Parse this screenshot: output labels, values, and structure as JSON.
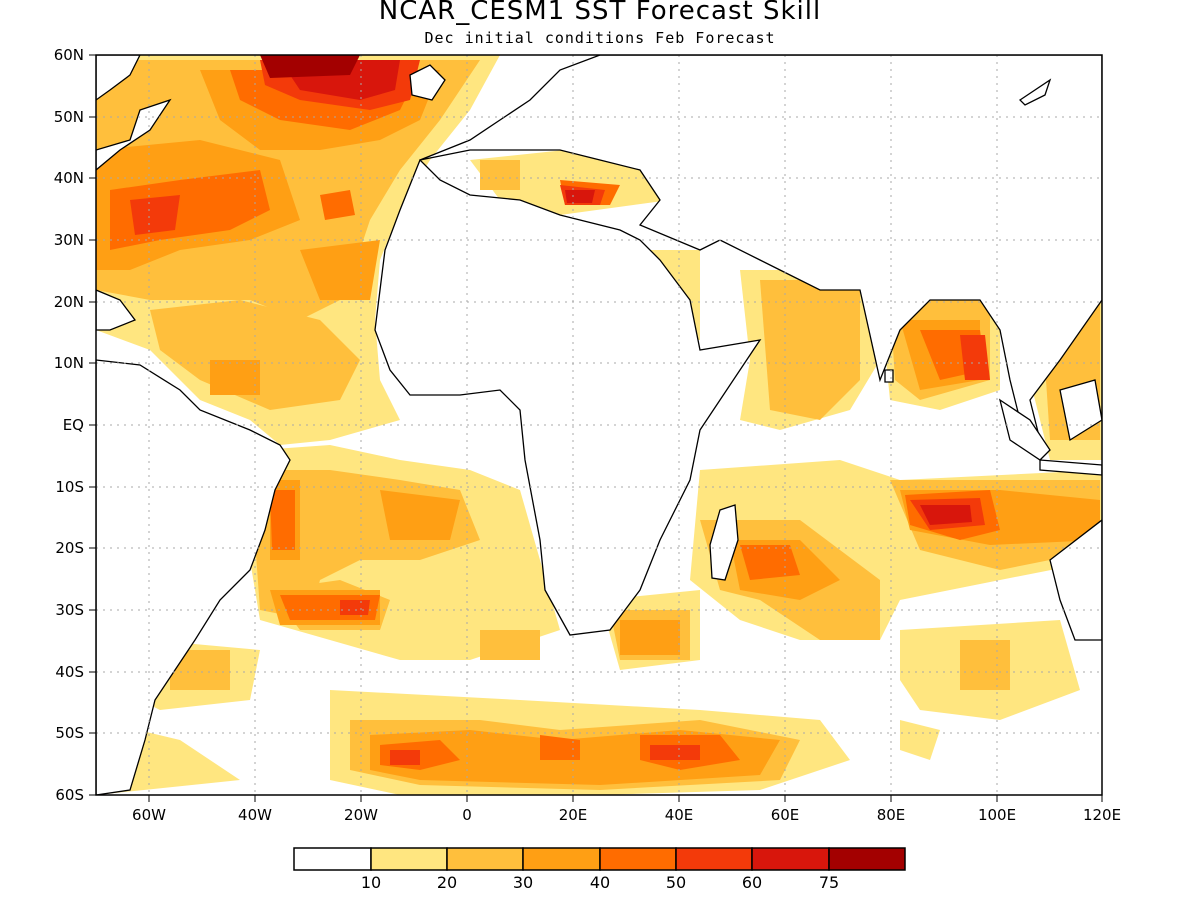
{
  "title": "NCAR_CESM1 SST Forecast Skill",
  "subtitle": "Dec initial conditions  Feb Forecast",
  "map": {
    "lon_range": [
      -70,
      120
    ],
    "lat_range": [
      -60,
      60
    ],
    "grid_lines": "dotted",
    "lon_ticks": [
      "60W",
      "40W",
      "20W",
      "0",
      "20E",
      "40E",
      "60E",
      "80E",
      "100E",
      "120E"
    ],
    "lat_ticks": [
      "60N",
      "50N",
      "40N",
      "30N",
      "20N",
      "10N",
      "EQ",
      "10S",
      "20S",
      "30S",
      "40S",
      "50S",
      "60S"
    ]
  },
  "colorbar": {
    "colors": [
      "#ffffff",
      "#ffe680",
      "#ffbf3c",
      "#ff9f14",
      "#ff6c00",
      "#f33a0a",
      "#d8160c",
      "#a30000"
    ],
    "labels": [
      "10",
      "20",
      "30",
      "40",
      "50",
      "60",
      "75"
    ]
  }
}
